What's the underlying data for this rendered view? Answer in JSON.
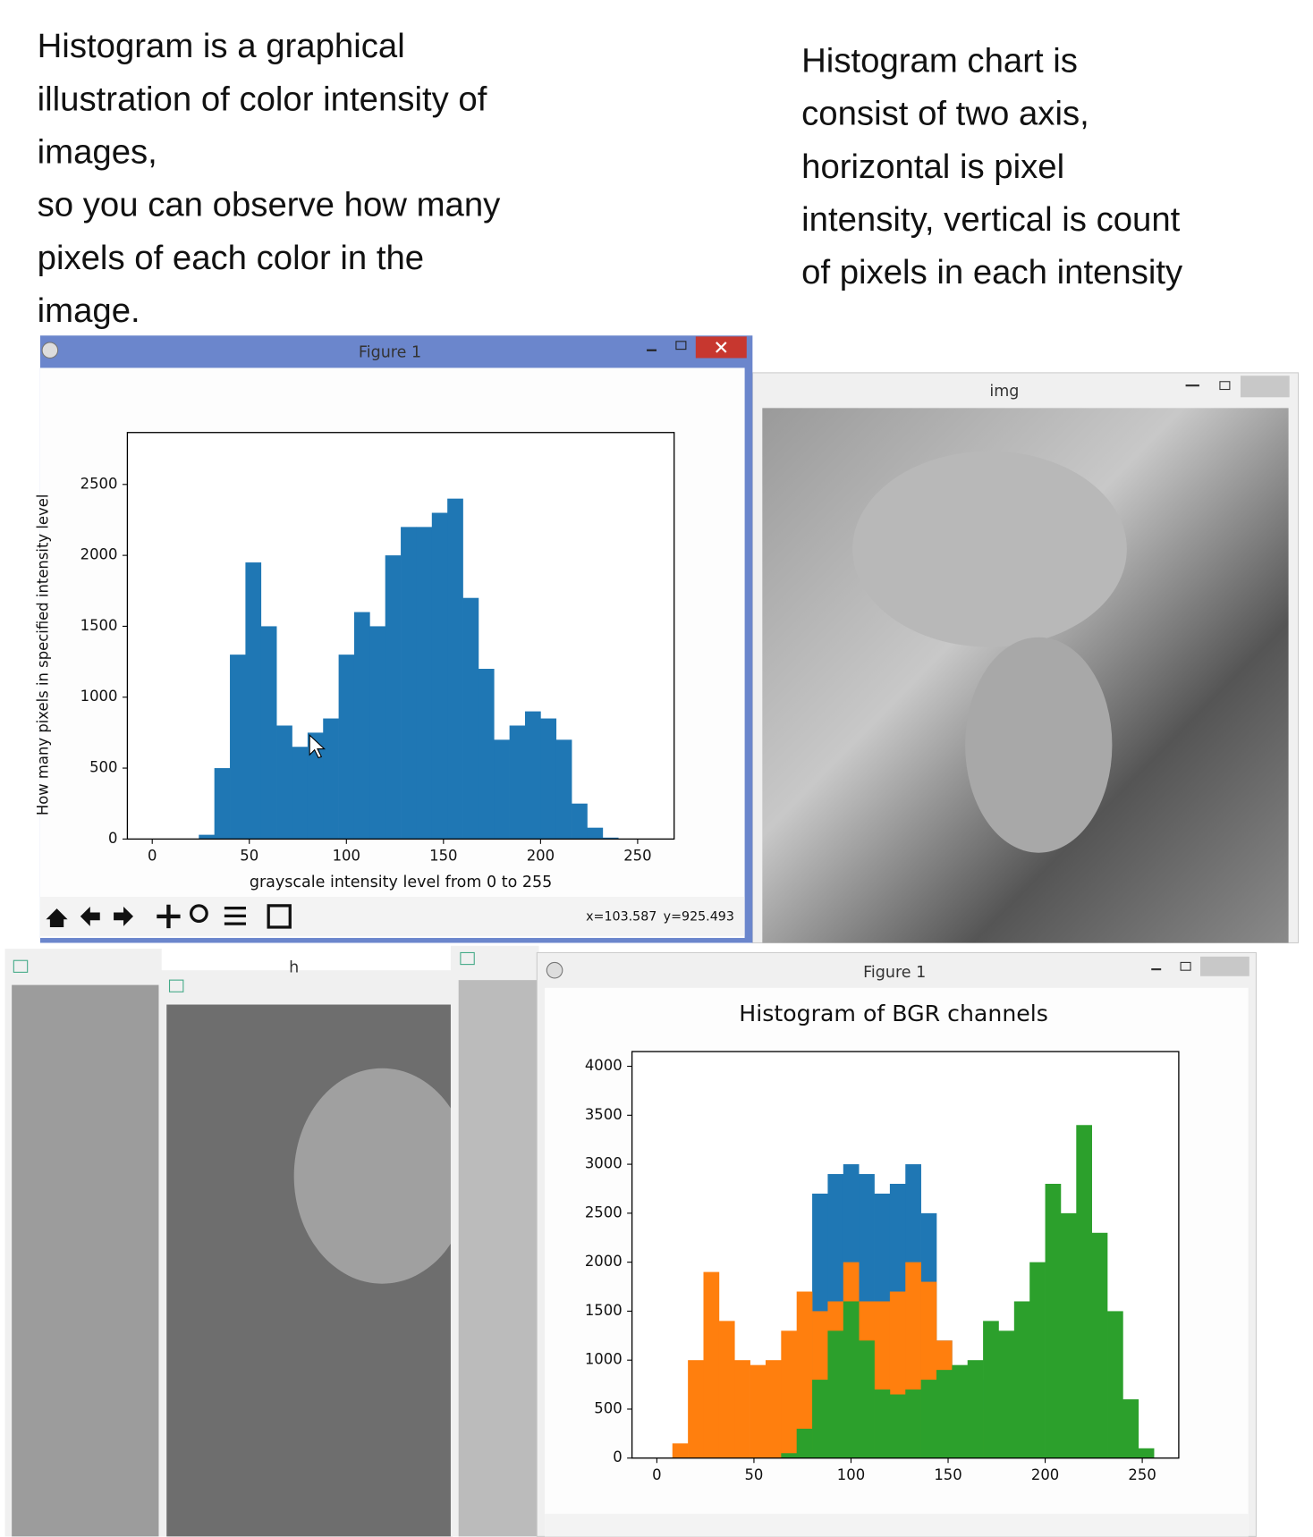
{
  "annotations": {
    "left": [
      "Histogram is a graphical",
      "illustration of color intensity of",
      "images,",
      "so you can observe how many",
      "pixels of each color in the",
      "image."
    ],
    "right": [
      "Histogram chart is",
      "consist of two axis,",
      "horizontal is pixel",
      "intensity, vertical is count",
      "of pixels in each intensity"
    ]
  },
  "windows": {
    "figure_top": {
      "title": "Figure 1",
      "status_x": "x=103.587",
      "status_y": "y=925.493"
    },
    "img": {
      "title": "img"
    },
    "h": {
      "title": "h"
    },
    "figure_bottom": {
      "title": "Figure 1"
    }
  },
  "chart_data": [
    {
      "type": "histogram",
      "ylabel": "How many pixels in specified intensity level",
      "xlabel": "grayscale intensity level  from 0 to 255",
      "bins": [
        0,
        8,
        16,
        24,
        32,
        40,
        48,
        56,
        64,
        72,
        80,
        88,
        96,
        104,
        112,
        120,
        128,
        136,
        144,
        152,
        160,
        168,
        176,
        184,
        192,
        200,
        208,
        216,
        224,
        232,
        240,
        248,
        256
      ],
      "values": [
        0,
        0,
        0,
        30,
        500,
        1300,
        1950,
        1500,
        800,
        650,
        750,
        850,
        1300,
        1600,
        1500,
        2000,
        2200,
        2200,
        2300,
        2400,
        1700,
        1200,
        700,
        800,
        900,
        850,
        700,
        250,
        80,
        10,
        0,
        0
      ],
      "color": "#1f77b4",
      "xlim": [
        -12.8,
        268.8
      ],
      "ylim": [
        0,
        2866
      ],
      "xticks": [
        0,
        50,
        100,
        150,
        200,
        250
      ],
      "yticks": [
        0,
        500,
        1000,
        1500,
        2000,
        2500
      ]
    },
    {
      "type": "histogram",
      "title": "Histogram of BGR channels",
      "bins": [
        0,
        8,
        16,
        24,
        32,
        40,
        48,
        56,
        64,
        72,
        80,
        88,
        96,
        104,
        112,
        120,
        128,
        136,
        144,
        152,
        160,
        168,
        176,
        184,
        192,
        200,
        208,
        216,
        224,
        232,
        240,
        248,
        256
      ],
      "series": [
        {
          "color": "#1f77b4",
          "values": [
            0,
            0,
            0,
            0,
            0,
            0,
            0,
            100,
            400,
            1000,
            2700,
            2900,
            3000,
            2900,
            2700,
            2800,
            3000,
            2500,
            1200,
            900,
            800,
            500,
            300,
            100,
            30,
            0,
            0,
            0,
            0,
            0,
            0,
            0
          ]
        },
        {
          "color": "#ff7f0e",
          "values": [
            0,
            150,
            1000,
            1900,
            1400,
            1000,
            950,
            1000,
            1300,
            1700,
            1500,
            1600,
            2000,
            1600,
            1600,
            1700,
            2000,
            1800,
            1200,
            900,
            500,
            200,
            50,
            0,
            0,
            0,
            0,
            0,
            0,
            0,
            0,
            0
          ]
        },
        {
          "color": "#2ca02c",
          "values": [
            0,
            0,
            0,
            0,
            0,
            0,
            0,
            0,
            50,
            300,
            800,
            1300,
            1600,
            1200,
            700,
            650,
            700,
            800,
            900,
            950,
            1000,
            1400,
            1300,
            1600,
            2000,
            2800,
            2500,
            3400,
            2300,
            1500,
            600,
            100
          ]
        }
      ],
      "xlim": [
        -12.8,
        268.8
      ],
      "ylim": [
        0,
        4150
      ],
      "xticks": [
        0,
        50,
        100,
        150,
        200,
        250
      ],
      "yticks": [
        0,
        500,
        1000,
        1500,
        2000,
        2500,
        3000,
        3500,
        4000
      ]
    }
  ]
}
